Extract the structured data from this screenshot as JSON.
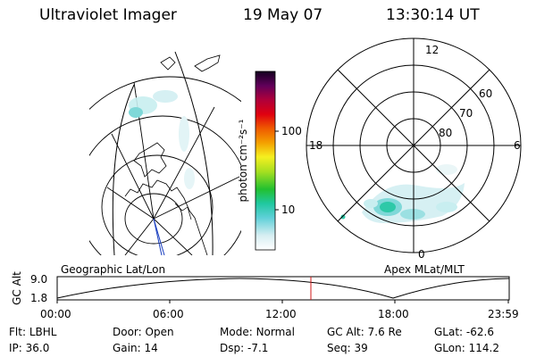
{
  "header": {
    "instrument": "Ultraviolet Imager",
    "date": "19 May 07",
    "time": "13:30:14 UT"
  },
  "colorbar": {
    "unit_label": "photon cm⁻²s⁻¹",
    "tick_100": "100",
    "tick_10": "10"
  },
  "polar_plot": {
    "label_top": "12",
    "label_left": "18",
    "label_right": "6",
    "label_bottom": "0",
    "ring_60": "60",
    "ring_70": "70",
    "ring_80": "80"
  },
  "timeline": {
    "left_title": "Geographic Lat/Lon",
    "right_title": "Apex MLat/MLT",
    "axis_label": "GC Alt",
    "y_top": "9.0",
    "y_bottom": "1.8",
    "x_ticks": [
      "00:00",
      "06:00",
      "12:00",
      "18:00",
      "23:59"
    ],
    "marker_time_hours": 13.5
  },
  "status": {
    "filter_label": "Flt:",
    "filter_value": "LBHL",
    "door_label": "Door:",
    "door_value": "Open",
    "mode_label": "Mode:",
    "mode_value": "Normal",
    "gcalt_label": "GC Alt:",
    "gcalt_value": "7.6 Re",
    "glat_label": "GLat:",
    "glat_value": "-62.6",
    "ip_label": "IP:",
    "ip_value": "36.0",
    "gain_label": "Gain:",
    "gain_value": "14",
    "dsp_label": "Dsp:",
    "dsp_value": "-7.1",
    "seq_label": "Seq:",
    "seq_value": "39",
    "glon_label": "GLon:",
    "glon_value": "114.2"
  },
  "colors": {
    "marker": "#d01818",
    "glow_light": "#c8eef0",
    "glow_mid": "#7fd8d8",
    "glow_strong": "#2ec9a8",
    "nadir_line": "#1a3fbf"
  }
}
